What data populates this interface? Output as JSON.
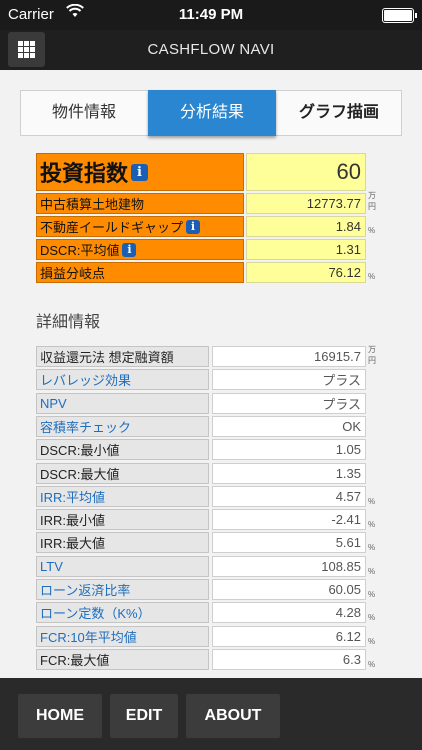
{
  "status_bar": {
    "carrier": "Carrier",
    "time": "11:49 PM"
  },
  "navbar": {
    "title": "CASHFLOW NAVI"
  },
  "tabs": [
    {
      "label": "物件情報"
    },
    {
      "label": "分析結果"
    },
    {
      "label": "グラフ描画"
    }
  ],
  "summary": {
    "index_label": "投資指数",
    "index_value": "60",
    "rows": [
      {
        "label": "中古積算土地建物",
        "value": "12773.77",
        "unit": "万円"
      },
      {
        "label": "不動産イールドギャップ",
        "value": "1.84",
        "unit": "%"
      },
      {
        "label": "DSCR:平均値",
        "value": "1.31",
        "unit": ""
      },
      {
        "label": "損益分岐点",
        "value": "76.12",
        "unit": "%"
      }
    ]
  },
  "detail": {
    "title": "詳細情報",
    "rows": [
      {
        "label": "収益還元法 想定融資額",
        "value": "16915.7",
        "unit": "万円"
      },
      {
        "label": "レバレッジ効果",
        "value": "プラス",
        "unit": ""
      },
      {
        "label": "NPV",
        "value": "プラス",
        "unit": ""
      },
      {
        "label": "容積率チェック",
        "value": "OK",
        "unit": ""
      },
      {
        "label": "DSCR:最小値",
        "value": "1.05",
        "unit": ""
      },
      {
        "label": "DSCR:最大値",
        "value": "1.35",
        "unit": ""
      },
      {
        "label": "IRR:平均値",
        "value": "4.57",
        "unit": "%"
      },
      {
        "label": "IRR:最小値",
        "value": "-2.41",
        "unit": "%"
      },
      {
        "label": "IRR:最大値",
        "value": "5.61",
        "unit": "%"
      },
      {
        "label": "LTV",
        "value": "108.85",
        "unit": "%"
      },
      {
        "label": "ローン返済比率",
        "value": "60.05",
        "unit": "%"
      },
      {
        "label": "ローン定数（K%）",
        "value": "4.28",
        "unit": "%"
      },
      {
        "label": "FCR:10年平均値",
        "value": "6.12",
        "unit": "%"
      },
      {
        "label": "FCR:最大値",
        "value": "6.3",
        "unit": "%"
      }
    ]
  },
  "toolbar": {
    "home": "HOME",
    "edit": "EDIT",
    "about": "ABOUT"
  },
  "info_glyph": "i",
  "colors": {
    "accent": "#2a86d0",
    "summary_label_bg": "#ff8c00",
    "summary_value_bg": "#ffff99",
    "link_blue": "#1e6ebd"
  }
}
